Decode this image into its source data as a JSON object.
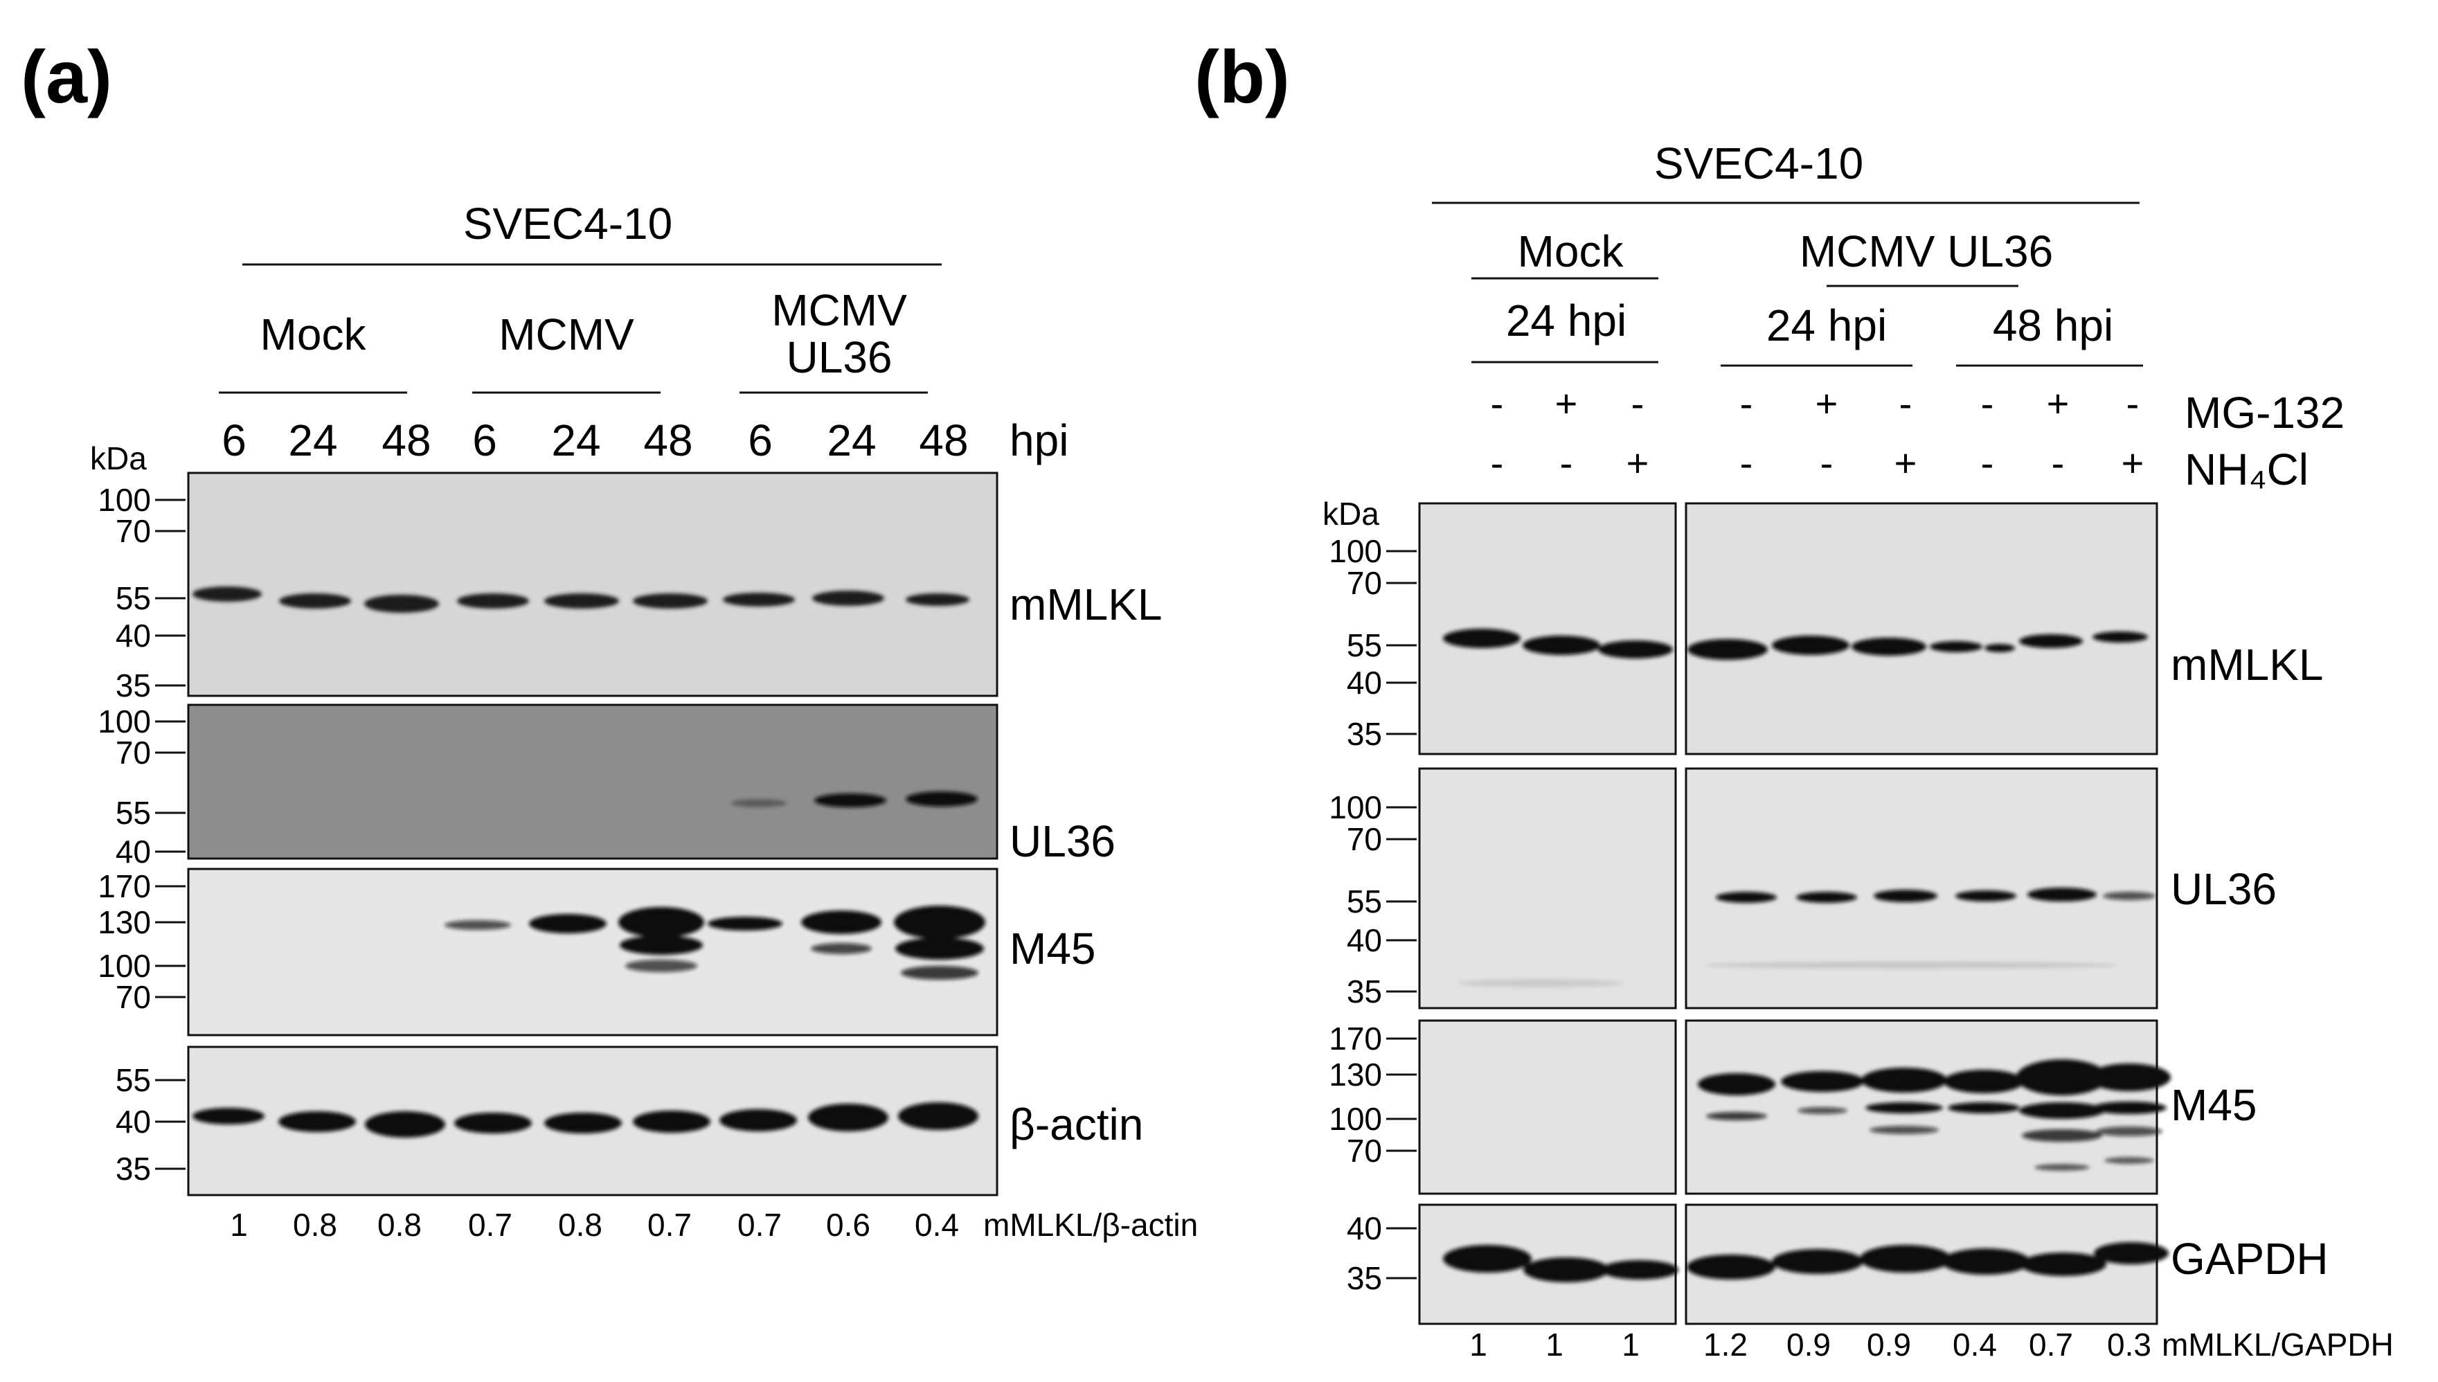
{
  "panel_a": {
    "label": "(a)",
    "cell_line": "SVEC4-10",
    "groups": [
      "Mock",
      "MCMV",
      "MCMV UL36"
    ],
    "group_lines": [
      [
        "Mock"
      ],
      [
        "MCMV"
      ],
      [
        "MCMV",
        "UL36"
      ]
    ],
    "lane_labels": [
      "6",
      "24",
      "48",
      "6",
      "24",
      "48",
      "6",
      "24",
      "48"
    ],
    "lane_unit": "hpi",
    "kda_label": "kDa",
    "blots": [
      {
        "name": "mMLKL",
        "markers": [
          "100",
          "70",
          "55",
          "40",
          "35"
        ]
      },
      {
        "name": "UL36",
        "markers": [
          "100",
          "70",
          "55",
          "40"
        ]
      },
      {
        "name": "M45",
        "markers": [
          "170",
          "130",
          "100",
          "70"
        ]
      },
      {
        "name": "β-actin",
        "markers": [
          "55",
          "40",
          "35"
        ]
      }
    ],
    "quant_label": "mMLKL/β-actin",
    "quant": [
      "1",
      "0.8",
      "0.8",
      "0.7",
      "0.8",
      "0.7",
      "0.7",
      "0.6",
      "0.4"
    ]
  },
  "panel_b": {
    "label": "(b)",
    "cell_line": "SVEC4-10",
    "mock_label": "Mock",
    "mock_time": "24 hpi",
    "virus_label": "MCMV UL36",
    "virus_times": [
      "24 hpi",
      "48 hpi"
    ],
    "treatments": [
      {
        "name": "MG-132",
        "signs": [
          "-",
          "+",
          "-",
          "-",
          "+",
          "-",
          "-",
          "+",
          "-"
        ]
      },
      {
        "name": "NH₄Cl",
        "signs": [
          "-",
          "-",
          "+",
          "-",
          "-",
          "+",
          "-",
          "-",
          "+"
        ]
      }
    ],
    "kda_label": "kDa",
    "blots": [
      {
        "name": "mMLKL",
        "markers": [
          "100",
          "70",
          "55",
          "40",
          "35"
        ]
      },
      {
        "name": "UL36",
        "markers": [
          "100",
          "70",
          "55",
          "40",
          "35"
        ]
      },
      {
        "name": "M45",
        "markers": [
          "170",
          "130",
          "100",
          "70"
        ]
      },
      {
        "name": "GAPDH",
        "markers": [
          "40",
          "35"
        ]
      }
    ],
    "quant_label": "mMLKL/GAPDH",
    "quant": [
      "1",
      "1",
      "1",
      "1.2",
      "0.9",
      "0.9",
      "0.4",
      "0.7",
      "0.3"
    ]
  },
  "colors": {
    "ink": "#111111",
    "blot_light": "#d9d9d9",
    "blot_dark": "#8a8a8a",
    "band": "#111111"
  }
}
